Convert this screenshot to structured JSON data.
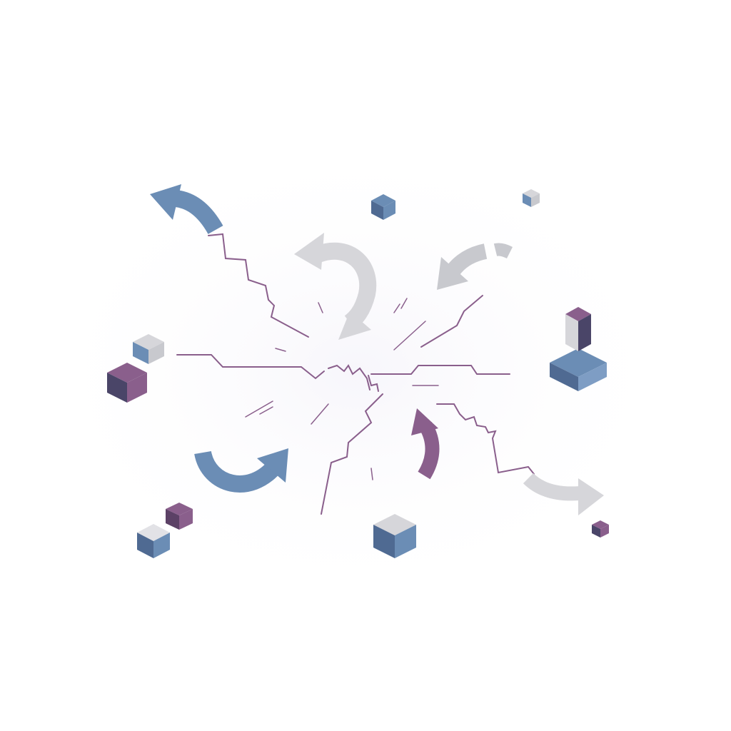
{
  "illustration": {
    "subject": "fracture-burst",
    "palette": {
      "background": "#ffffff",
      "crack": "#8a5f8c",
      "blue": "#6b8db5",
      "blue_dark": "#4f6a92",
      "purple": "#8a5f8c",
      "purple_dark": "#5c4166",
      "grey": "#d6d6da",
      "grey_dark": "#b3b4bb"
    },
    "elements": {
      "cracks": 8,
      "motion_strokes": 10,
      "arrows": 7,
      "cubes": 10
    }
  }
}
